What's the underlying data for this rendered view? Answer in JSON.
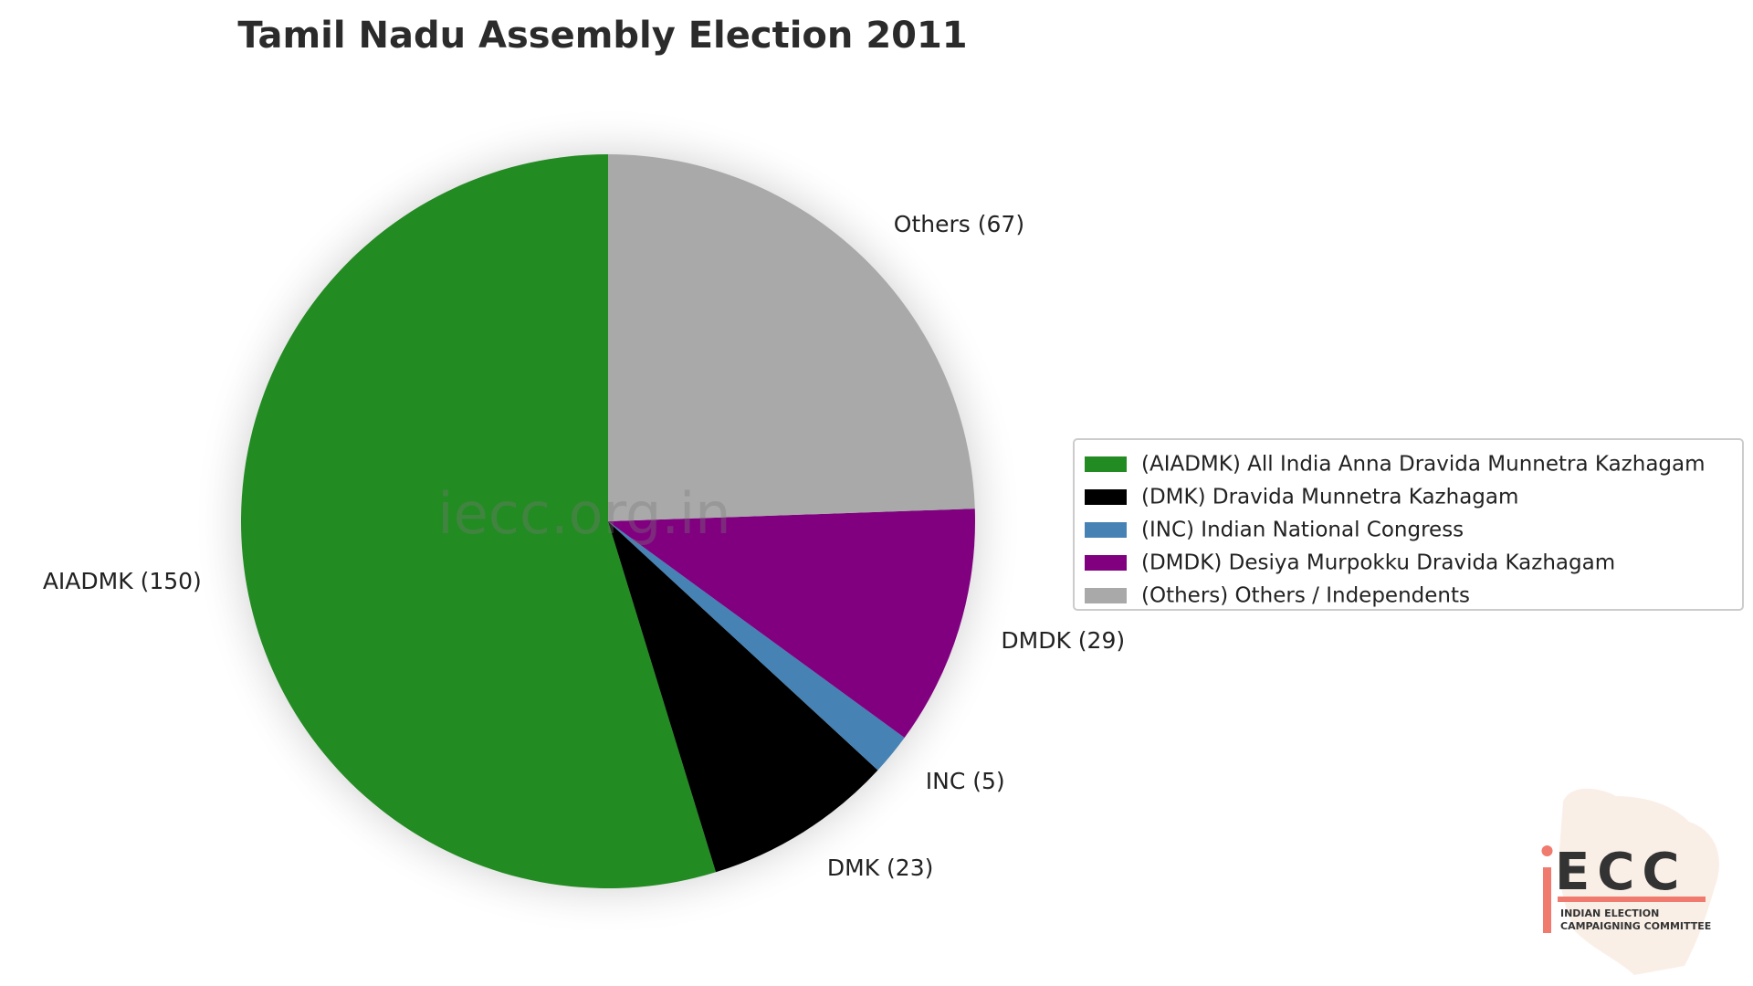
{
  "chart_data": {
    "type": "pie",
    "title": "Tamil Nadu Assembly Election 2011",
    "start_angle_deg": 90,
    "direction": "counterclockwise",
    "slices": [
      {
        "key": "AIADMK",
        "label": "AIADMK (150)",
        "value": 150,
        "color": "#228B22",
        "legend": "(AIADMK) All India Anna Dravida Munnetra Kazhagam"
      },
      {
        "key": "DMK",
        "label": "DMK (23)",
        "value": 23,
        "color": "#000000",
        "legend": "(DMK) Dravida Munnetra Kazhagam"
      },
      {
        "key": "INC",
        "label": "INC (5)",
        "value": 5,
        "color": "#4682B4",
        "legend": "(INC) Indian National Congress"
      },
      {
        "key": "DMDK",
        "label": "DMDK (29)",
        "value": 29,
        "color": "#800080",
        "legend": "(DMDK) Desiya Murpokku Dravida Kazhagam"
      },
      {
        "key": "Others",
        "label": "Others (67)",
        "value": 67,
        "color": "#A9A9A9",
        "legend": "(Others) Others / Independents"
      }
    ],
    "legend_position": "center-right",
    "watermark": "iecc.org.in"
  },
  "logo": {
    "mark": "ECC",
    "line1": "INDIAN ELECTION",
    "line2": "CAMPAIGNING COMMITTEE",
    "accent_color": "#F07A6E"
  }
}
